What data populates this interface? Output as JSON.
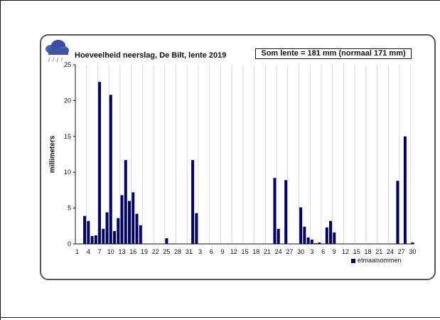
{
  "chart_data": {
    "type": "bar",
    "title": "Hoeveelheid neerslag, De Bilt, lente 2019",
    "summary": "Som lente = 181 mm (normaal  171 mm)",
    "ylabel": "millimeters",
    "xlabel": "",
    "ylim": [
      0,
      25
    ],
    "yticks": [
      "0",
      "5",
      "10",
      "15",
      "20",
      "25"
    ],
    "xtick_labels": [
      "1",
      "4",
      "7",
      "10",
      "13",
      "16",
      "19",
      "22",
      "25",
      "28",
      "31",
      "3",
      "6",
      "9",
      "12",
      "15",
      "18",
      "21",
      "24",
      "27",
      "30",
      "3",
      "6",
      "9",
      "12",
      "15",
      "18",
      "21",
      "24",
      "27",
      "30"
    ],
    "grid": "vertical",
    "legend": "bottom-right",
    "bar_color": "#000066",
    "series": [
      {
        "name": "etmaalsommen",
        "values": [
          0,
          0,
          3.9,
          3.2,
          1.1,
          1.2,
          22.6,
          2.1,
          4.4,
          20.8,
          1.8,
          3.6,
          6.8,
          11.7,
          6.0,
          7.2,
          4.2,
          2.6,
          0,
          0,
          0,
          0,
          0,
          0,
          0.8,
          0,
          0,
          0,
          0,
          0,
          0,
          11.7,
          4.3,
          0,
          0,
          0,
          0,
          0,
          0,
          0,
          0,
          0,
          0,
          0,
          0,
          0,
          0,
          0,
          0,
          0,
          0,
          0,
          0,
          9.2,
          2.1,
          0,
          8.9,
          0,
          0,
          0,
          5.1,
          2.4,
          0.9,
          0.6,
          0.1,
          0.2,
          0,
          2.3,
          3.2,
          1.6,
          0,
          0,
          0,
          0,
          0,
          0,
          0,
          0,
          0,
          0,
          0,
          0,
          0,
          0,
          0,
          0,
          8.8,
          0,
          15.0,
          0,
          0.2
        ]
      }
    ]
  }
}
